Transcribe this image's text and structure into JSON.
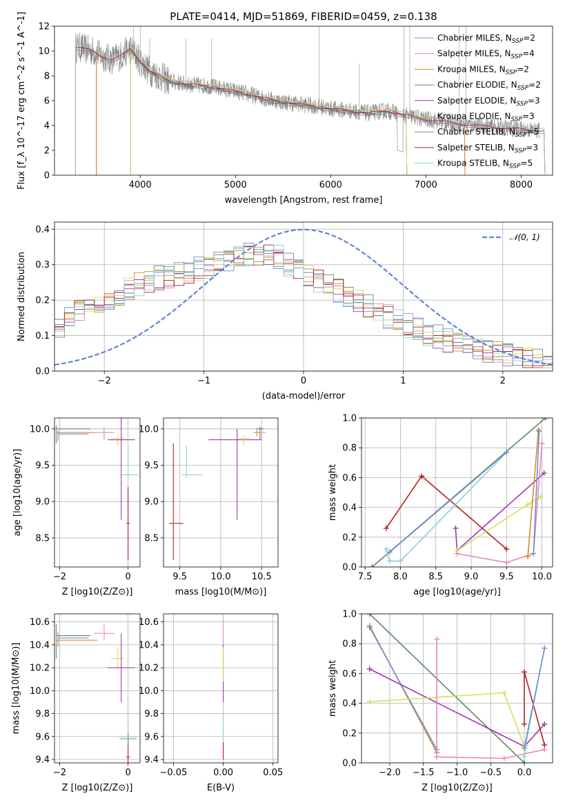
{
  "figure_title": "PLATE=0414, MJD=51869, FIBERID=0459, z=0.138",
  "colors": {
    "Chabrier MILES": "#6f8fd0",
    "Salpeter MILES": "#e887b5",
    "Kroupa MILES": "#d88a2a",
    "Chabrier ELODIE": "#5d8a63",
    "Salpeter ELODIE": "#9b37b0",
    "Kroupa ELODIE": "#d4e05a",
    "Chabrier STELIB": "#8c8c8c",
    "Salpeter STELIB": "#b0201f",
    "Kroupa STELIB": "#8ccfd6",
    "data": "#808080",
    "gauss": "#5f86d1"
  },
  "chart_data": [
    {
      "id": "spectrum",
      "type": "line",
      "title": "PLATE=0414, MJD=51869, FIBERID=0459, z=0.138",
      "xlabel": "wavelength [Angstrom, rest frame]",
      "ylabel": "Flux [f_λ 10^-17 erg cm^-2 s^-1 A^-1]",
      "xlim": [
        3100,
        8330
      ],
      "ylim": [
        0,
        12
      ],
      "xticks": [
        4000,
        5000,
        6000,
        7000,
        8000
      ],
      "yticks": [
        0,
        2,
        4,
        6,
        8,
        10,
        12
      ],
      "legend_position": "top-right",
      "legend": [
        {
          "label": "Chabrier MILES, N",
          "sub": "SSP",
          "tail": "=2",
          "model": "Chabrier MILES"
        },
        {
          "label": "Salpeter MILES, N",
          "sub": "SSP",
          "tail": "=4",
          "model": "Salpeter MILES"
        },
        {
          "label": "Kroupa MILES, N",
          "sub": "SSP",
          "tail": "=2",
          "model": "Kroupa MILES"
        },
        {
          "label": "Chabrier ELODIE, N",
          "sub": "SSP",
          "tail": "=2",
          "model": "Chabrier ELODIE"
        },
        {
          "label": "Salpeter ELODIE, N",
          "sub": "SSP",
          "tail": "=3",
          "model": "Salpeter ELODIE"
        },
        {
          "label": "Kroupa ELODIE, N",
          "sub": "SSP",
          "tail": "=3",
          "model": "Kroupa ELODIE"
        },
        {
          "label": "Chabrier STELIB, N",
          "sub": "SSP",
          "tail": "=5",
          "model": "Chabrier STELIB"
        },
        {
          "label": "Salpeter STELIB, N",
          "sub": "SSP",
          "tail": "=3",
          "model": "Salpeter STELIB"
        },
        {
          "label": "Kroupa STELIB, N",
          "sub": "SSP",
          "tail": "=5",
          "model": "Kroupa STELIB"
        }
      ],
      "continuum": [
        [
          3350,
          10.3
        ],
        [
          3500,
          10.0
        ],
        [
          3600,
          9.6
        ],
        [
          3700,
          9.3
        ],
        [
          3800,
          9.6
        ],
        [
          3900,
          10.2
        ],
        [
          4000,
          9.2
        ],
        [
          4100,
          8.4
        ],
        [
          4200,
          8.0
        ],
        [
          4300,
          7.6
        ],
        [
          4500,
          7.3
        ],
        [
          4700,
          7.2
        ],
        [
          4900,
          6.9
        ],
        [
          5100,
          6.6
        ],
        [
          5300,
          6.2
        ],
        [
          5500,
          5.9
        ],
        [
          5800,
          5.6
        ],
        [
          6000,
          5.35
        ],
        [
          6200,
          5.2
        ],
        [
          6400,
          5.0
        ],
        [
          6600,
          5.2
        ],
        [
          6800,
          4.8
        ],
        [
          7000,
          4.5
        ],
        [
          7300,
          4.2
        ],
        [
          7600,
          3.95
        ],
        [
          8000,
          3.7
        ],
        [
          8150,
          3.6
        ]
      ],
      "model_ranges": {
        "MILES": [
          3540,
          7410
        ],
        "ELODIE": [
          3900,
          6800
        ],
        "STELIB": [
          3320,
          8250
        ]
      }
    },
    {
      "id": "residuals",
      "type": "histogram",
      "xlabel": "(data-model)/error",
      "ylabel": "Normed distribution",
      "xlim": [
        -2.5,
        2.5
      ],
      "ylim": [
        0,
        0.42
      ],
      "xticks": [
        -2,
        -1,
        0,
        1,
        2
      ],
      "yticks": [
        0.0,
        0.1,
        0.2,
        0.3,
        0.4
      ],
      "legend": "𝒩(0, 1)",
      "legend_position": "top-right",
      "bin_width": 0.1,
      "profile": [
        [
          -2.5,
          0.12
        ],
        [
          -2.1,
          0.19
        ],
        [
          -1.5,
          0.26
        ],
        [
          -1.0,
          0.29
        ],
        [
          -0.6,
          0.33
        ],
        [
          -0.3,
          0.33
        ],
        [
          0.0,
          0.27
        ],
        [
          0.4,
          0.22
        ],
        [
          0.8,
          0.16
        ],
        [
          1.2,
          0.11
        ],
        [
          1.6,
          0.075
        ],
        [
          2.0,
          0.045
        ],
        [
          2.5,
          0.025
        ]
      ]
    },
    {
      "id": "age_vs_Z",
      "type": "errorbar",
      "xlabel": "Z [log10(Z/Z⊙)]",
      "ylabel": "age [log10(age/yr)]",
      "xlim": [
        -2.15,
        0.35
      ],
      "ylim": [
        8.1,
        10.15
      ],
      "xticks": [
        -2,
        0
      ],
      "yticks": [
        8.5,
        9.0,
        9.5,
        10.0
      ],
      "points": [
        {
          "model": "Chabrier ELODIE",
          "x": -2.1,
          "y": 10.0,
          "xerr": [
            0,
            1.0
          ],
          "yerr": [
            0.2,
            0.05
          ]
        },
        {
          "model": "Kroupa MILES",
          "x": -2.1,
          "y": 9.95,
          "xerr": [
            0,
            1.2
          ],
          "yerr": [
            0.1,
            0.05
          ]
        },
        {
          "model": "Chabrier MILES",
          "x": -2.05,
          "y": 9.93,
          "xerr": [
            0,
            0.9
          ],
          "yerr": [
            0.1,
            0.05
          ]
        },
        {
          "model": "Salpeter MILES",
          "x": -0.7,
          "y": 9.95,
          "xerr": [
            0.3,
            0.3
          ],
          "yerr": [
            0.1,
            0.08
          ]
        },
        {
          "model": "Kroupa ELODIE",
          "x": -0.3,
          "y": 9.87,
          "xerr": [
            0.2,
            0.2
          ],
          "yerr": [
            0.1,
            0.05
          ]
        },
        {
          "model": "Salpeter ELODIE",
          "x": -0.2,
          "y": 9.85,
          "xerr": [
            0.4,
            0.4
          ],
          "yerr": [
            1.1,
            0.3
          ]
        },
        {
          "model": "Kroupa STELIB",
          "x": 0.0,
          "y": 9.37,
          "xerr": [
            0.25,
            0.3
          ],
          "yerr": [
            0.05,
            0.4
          ]
        },
        {
          "model": "Salpeter STELIB",
          "x": 0.0,
          "y": 8.7,
          "xerr": [
            0.05,
            0.05
          ],
          "yerr": [
            0.5,
            0.5
          ]
        }
      ]
    },
    {
      "id": "age_vs_mass",
      "type": "errorbar",
      "xlabel": "mass [log10(M/M⊙)]",
      "ylabel": "",
      "xlim": [
        9.3,
        10.7
      ],
      "ylim": [
        8.1,
        10.15
      ],
      "xticks": [
        9.5,
        10.0,
        10.5
      ],
      "yticks": [
        8.5,
        9.0,
        9.5,
        10.0
      ],
      "points": [
        {
          "model": "Salpeter STELIB",
          "x": 9.42,
          "y": 8.7,
          "xerr": [
            0.05,
            0.12
          ],
          "yerr": [
            0.5,
            1.1
          ]
        },
        {
          "model": "Kroupa STELIB",
          "x": 9.58,
          "y": 9.37,
          "xerr": [
            0.05,
            0.2
          ],
          "yerr": [
            0.05,
            0.4
          ]
        },
        {
          "model": "Salpeter ELODIE",
          "x": 10.2,
          "y": 9.85,
          "xerr": [
            0.35,
            0.3
          ],
          "yerr": [
            1.1,
            0.15
          ]
        },
        {
          "model": "Kroupa ELODIE",
          "x": 10.28,
          "y": 9.87,
          "xerr": [
            0.1,
            0.1
          ],
          "yerr": [
            0.1,
            0.05
          ]
        },
        {
          "model": "Salpeter MILES",
          "x": 10.5,
          "y": 9.95,
          "xerr": [
            0.05,
            0.05
          ],
          "yerr": [
            0.1,
            0.08
          ]
        },
        {
          "model": "Chabrier ELODIE",
          "x": 10.48,
          "y": 10.0,
          "xerr": [
            0.05,
            0.05
          ],
          "yerr": [
            0.15,
            0.03
          ]
        },
        {
          "model": "Kroupa MILES",
          "x": 10.44,
          "y": 9.95,
          "xerr": [
            0.04,
            0.04
          ],
          "yerr": [
            0.05,
            0.04
          ]
        }
      ]
    },
    {
      "id": "weight_vs_age",
      "type": "line",
      "xlabel": "age [log10(age/yr)]",
      "ylabel": "mass weight",
      "xlim": [
        7.45,
        10.15
      ],
      "ylim": [
        0,
        1.0
      ],
      "xticks": [
        7.5,
        8.0,
        8.5,
        9.0,
        9.5,
        10.0
      ],
      "yticks": [
        0.0,
        0.2,
        0.4,
        0.6,
        0.8,
        1.0
      ],
      "series": [
        {
          "model": "Chabrier ELODIE",
          "x": [
            7.6,
            10.05
          ],
          "y": [
            0.0,
            1.0
          ]
        },
        {
          "model": "Salpeter STELIB",
          "x": [
            7.8,
            8.3,
            9.5
          ],
          "y": [
            0.26,
            0.61,
            0.12
          ]
        },
        {
          "model": "Kroupa STELIB",
          "x": [
            7.8,
            7.85,
            8.0,
            9.5
          ],
          "y": [
            0.12,
            0.04,
            0.04,
            0.77
          ]
        },
        {
          "model": "Chabrier MILES",
          "x": [
            7.85,
            9.5
          ],
          "y": [
            0.1,
            0.77
          ]
        },
        {
          "model": "Salpeter ELODIE",
          "x": [
            8.78,
            8.8,
            10.03
          ],
          "y": [
            0.26,
            0.11,
            0.63
          ]
        },
        {
          "model": "Kroupa ELODIE",
          "x": [
            8.8,
            9.8,
            9.98
          ],
          "y": [
            0.11,
            0.42,
            0.47
          ]
        },
        {
          "model": "Salpeter MILES",
          "x": [
            8.8,
            9.5,
            9.88,
            10.0
          ],
          "y": [
            0.09,
            0.03,
            0.09,
            0.83
          ]
        },
        {
          "model": "Kroupa MILES",
          "x": [
            9.8,
            9.95
          ],
          "y": [
            0.07,
            0.92
          ]
        },
        {
          "model": "Chabrier MILES",
          "x": [
            9.88,
            9.96
          ],
          "y": [
            0.09,
            0.91
          ]
        }
      ]
    },
    {
      "id": "mass_vs_Z",
      "type": "errorbar",
      "xlabel": "Z [log10(Z/Z⊙)]",
      "ylabel": "mass [log10(M/M⊙)]",
      "xlim": [
        -2.15,
        0.35
      ],
      "ylim": [
        9.37,
        10.67
      ],
      "xticks": [
        -2,
        0
      ],
      "yticks": [
        9.4,
        9.6,
        9.8,
        10.0,
        10.2,
        10.4,
        10.6
      ],
      "points": [
        {
          "model": "Chabrier ELODIE",
          "x": -2.1,
          "y": 10.48,
          "xerr": [
            0,
            1.0
          ],
          "yerr": [
            0.2,
            0.1
          ]
        },
        {
          "model": "Chabrier MILES",
          "x": -2.05,
          "y": 10.46,
          "xerr": [
            0,
            0.9
          ],
          "yerr": [
            0.08,
            0.05
          ]
        },
        {
          "model": "Kroupa MILES",
          "x": -2.1,
          "y": 10.44,
          "xerr": [
            0,
            1.2
          ],
          "yerr": [
            0.05,
            0.05
          ]
        },
        {
          "model": "Salpeter MILES",
          "x": -0.7,
          "y": 10.5,
          "xerr": [
            0.3,
            0.3
          ],
          "yerr": [
            0.06,
            0.08
          ]
        },
        {
          "model": "Kroupa ELODIE",
          "x": -0.3,
          "y": 10.28,
          "xerr": [
            0.2,
            0.2
          ],
          "yerr": [
            0.1,
            0.1
          ]
        },
        {
          "model": "Salpeter ELODIE",
          "x": -0.2,
          "y": 10.2,
          "xerr": [
            0.4,
            0.4
          ],
          "yerr": [
            0.3,
            0.3
          ]
        },
        {
          "model": "Kroupa STELIB",
          "x": 0.0,
          "y": 9.6,
          "xerr": [
            0.25,
            0.3
          ],
          "yerr": [
            0.1,
            0.2
          ]
        },
        {
          "model": "Salpeter STELIB",
          "x": 0.0,
          "y": 9.42,
          "xerr": [
            0.05,
            0.05
          ],
          "yerr": [
            0.05,
            0.15
          ]
        },
        {
          "model": "Chabrier STELIB",
          "x": 0.0,
          "y": 9.58,
          "xerr": [
            0.25,
            0.25
          ],
          "yerr": [
            0.05,
            0.05
          ]
        }
      ]
    },
    {
      "id": "mass_vs_ebv",
      "type": "errorbar",
      "xlabel": "E(B-V)",
      "ylabel": "",
      "xlim": [
        -0.06,
        0.055
      ],
      "ylim": [
        9.37,
        10.67
      ],
      "xticks": [
        -0.05,
        0.0,
        0.05
      ],
      "yticks": [
        9.4,
        9.6,
        9.8,
        10.0,
        10.2,
        10.4,
        10.6
      ],
      "points": [
        {
          "model": "Salpeter MILES",
          "x": 0.0,
          "y": 10.5,
          "xerr": [
            0,
            0
          ],
          "yerr": [
            0.1,
            0.12
          ]
        },
        {
          "model": "Salpeter ELODIE",
          "x": 0.0,
          "y": 10.2,
          "xerr": [
            0,
            0
          ],
          "yerr": [
            0.3,
            0.2
          ]
        },
        {
          "model": "Kroupa ELODIE",
          "x": 0.0,
          "y": 10.28,
          "xerr": [
            0,
            0
          ],
          "yerr": [
            0.2,
            0.1
          ]
        },
        {
          "model": "Kroupa STELIB",
          "x": 0.0,
          "y": 9.6,
          "xerr": [
            0,
            0
          ],
          "yerr": [
            0.1,
            0.2
          ]
        },
        {
          "model": "Salpeter STELIB",
          "x": 0.0,
          "y": 9.45,
          "xerr": [
            0,
            0
          ],
          "yerr": [
            0.05,
            0.1
          ]
        }
      ]
    },
    {
      "id": "weight_vs_Z",
      "type": "line",
      "xlabel": "Z [log10(Z/Z⊙)]",
      "ylabel": "mass weight",
      "xlim": [
        -2.42,
        0.42
      ],
      "ylim": [
        0,
        1.0
      ],
      "xticks": [
        -2.0,
        -1.5,
        -1.0,
        -0.5,
        0.0
      ],
      "yticks": [
        0.0,
        0.2,
        0.4,
        0.6,
        0.8,
        1.0
      ],
      "series": [
        {
          "model": "Chabrier ELODIE",
          "x": [
            -2.3,
            0.0
          ],
          "y": [
            1.0,
            0.0
          ]
        },
        {
          "model": "Kroupa MILES",
          "x": [
            -2.3,
            -1.3
          ],
          "y": [
            0.92,
            0.07
          ]
        },
        {
          "model": "Chabrier MILES",
          "x": [
            -2.3,
            -1.3
          ],
          "y": [
            0.91,
            0.09
          ]
        },
        {
          "model": "Salpeter ELODIE",
          "x": [
            -2.3,
            0.0,
            0.3
          ],
          "y": [
            0.63,
            0.11,
            0.26
          ]
        },
        {
          "model": "Kroupa ELODIE",
          "x": [
            -2.3,
            -0.3,
            0.0
          ],
          "y": [
            0.41,
            0.47,
            0.11
          ]
        },
        {
          "model": "Salpeter MILES",
          "x": [
            -1.3,
            -1.3,
            -0.3,
            0.3
          ],
          "y": [
            0.83,
            0.04,
            0.03,
            0.09
          ]
        },
        {
          "model": "Salpeter STELIB",
          "x": [
            0.0,
            0.0,
            0.3
          ],
          "y": [
            0.26,
            0.61,
            0.12
          ]
        },
        {
          "model": "Kroupa STELIB",
          "x": [
            0.0,
            0.02,
            0.3
          ],
          "y": [
            0.04,
            0.12,
            0.77
          ]
        },
        {
          "model": "Chabrier MILES",
          "x": [
            0.0,
            0.3
          ],
          "y": [
            0.1,
            0.77
          ]
        }
      ]
    }
  ]
}
